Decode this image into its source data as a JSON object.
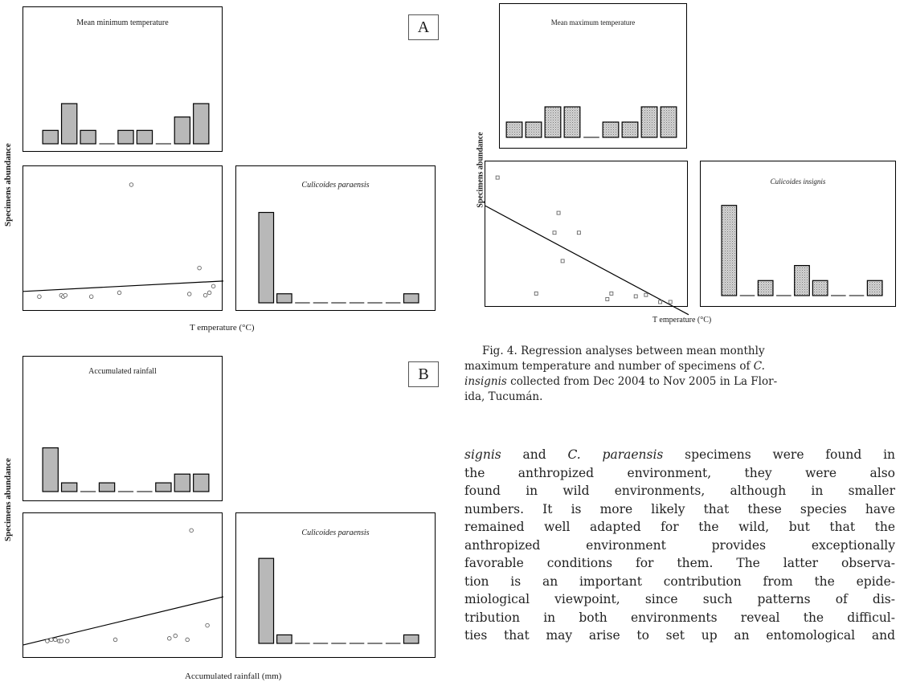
{
  "figure_a": {
    "letter": "A",
    "ylabel": "Specimens abundance",
    "xlabel": "T emperature (°C)",
    "top_title": "Mean minimum temperature",
    "right_title": "Culicoides paraensis"
  },
  "figure_b": {
    "letter": "B",
    "ylabel": "Specimens abundance",
    "xlabel": "Accumulated rainfall (mm)",
    "top_title": "Accumulated rainfall",
    "right_title": "Culicoides paraensis"
  },
  "figure_4": {
    "ylabel": "Specimens abundance",
    "xlabel": "T emperature (°C)",
    "top_title": "Mean maximum temperature",
    "right_title": "Culicoides insignis"
  },
  "caption": {
    "line1": "Fig. 4. Regression analyses between mean monthly",
    "line2a": "maximum temperature and number of specimens of ",
    "line2b": "C.",
    "line3a": "insignis",
    "line3b": " collected from Dec 2004 to Nov 2005 in La Flor-",
    "line4": "ida, Tucumán."
  },
  "body": {
    "l1a": "signis",
    "l1b": " and ",
    "l1c": "C. paraensis",
    "l1d": " specimens were found in",
    "l2": "the anthropized environment, they were also",
    "l3": "found in wild environments, although in smaller",
    "l4": "numbers. It is more likely that these species have",
    "l5": "remained well adapted for the wild, but that the",
    "l6": "anthropized environment provides exceptionally",
    "l7": "favorable conditions for them. The latter observa-",
    "l8": "tion is an important contribution from the epide-",
    "l9": "miological viewpoint, since such patterns of dis-",
    "l10": "tribution in both environments reveal the difficul-",
    "l11": "ties that may arise to set up an entomological and"
  },
  "colors": {
    "bar_gray": "#b8b8b8",
    "bar_stipple": "#d4d4d4",
    "line": "#000000",
    "point": "#666666"
  },
  "chart_data": [
    {
      "id": "A-top",
      "type": "bar",
      "title": "Mean minimum temperature",
      "values": [
        1,
        3,
        1,
        0,
        1,
        1,
        0,
        2,
        3
      ],
      "ylim": [
        0,
        6
      ]
    },
    {
      "id": "A-scatter",
      "type": "scatter",
      "ylabel": "Specimens abundance",
      "xlabel": "T emperature (°C)",
      "points": [
        [
          0.08,
          0.06
        ],
        [
          0.19,
          0.07
        ],
        [
          0.2,
          0.06
        ],
        [
          0.21,
          0.07
        ],
        [
          0.34,
          0.06
        ],
        [
          0.48,
          0.09
        ],
        [
          0.54,
          0.92
        ],
        [
          0.83,
          0.08
        ],
        [
          0.88,
          0.28
        ],
        [
          0.91,
          0.07
        ],
        [
          0.93,
          0.09
        ],
        [
          0.95,
          0.14
        ]
      ],
      "trend": [
        [
          0.0,
          0.1
        ],
        [
          1.0,
          0.18
        ]
      ]
    },
    {
      "id": "A-right",
      "type": "bar",
      "title": "Culicoides paraensis",
      "values": [
        10,
        1,
        0,
        0,
        0,
        0,
        0,
        0,
        1
      ],
      "ylim": [
        0,
        12
      ]
    },
    {
      "id": "B-top",
      "type": "bar",
      "title": "Accumulated rainfall",
      "values": [
        5,
        1,
        0,
        1,
        0,
        0,
        1,
        2,
        2
      ],
      "ylim": [
        0,
        9
      ]
    },
    {
      "id": "B-scatter",
      "type": "scatter",
      "ylabel": "Specimens abundance",
      "xlabel": "Accumulated rainfall (mm)",
      "points": [
        [
          0.12,
          0.08
        ],
        [
          0.14,
          0.09
        ],
        [
          0.16,
          0.09
        ],
        [
          0.18,
          0.08
        ],
        [
          0.19,
          0.08
        ],
        [
          0.22,
          0.08
        ],
        [
          0.46,
          0.09
        ],
        [
          0.73,
          0.1
        ],
        [
          0.76,
          0.12
        ],
        [
          0.82,
          0.09
        ],
        [
          0.84,
          0.93
        ],
        [
          0.92,
          0.2
        ]
      ],
      "trend": [
        [
          0.0,
          0.05
        ],
        [
          1.0,
          0.42
        ]
      ]
    },
    {
      "id": "B-right",
      "type": "bar",
      "title": "Culicoides paraensis",
      "values": [
        10,
        1,
        0,
        0,
        0,
        0,
        0,
        0,
        1
      ],
      "ylim": [
        0,
        12
      ]
    },
    {
      "id": "4-top",
      "type": "bar",
      "title": "Mean maximum temperature",
      "values": [
        1,
        1,
        2,
        2,
        0,
        1,
        1,
        2,
        2
      ],
      "ylim": [
        0,
        4
      ]
    },
    {
      "id": "4-scatter",
      "type": "scatter",
      "ylabel": "Specimens abundance",
      "xlabel": "T emperature (°C)",
      "points": [
        [
          0.06,
          0.92
        ],
        [
          0.25,
          0.1
        ],
        [
          0.34,
          0.53
        ],
        [
          0.36,
          0.67
        ],
        [
          0.38,
          0.33
        ],
        [
          0.46,
          0.53
        ],
        [
          0.6,
          0.06
        ],
        [
          0.62,
          0.1
        ],
        [
          0.74,
          0.08
        ],
        [
          0.79,
          0.09
        ],
        [
          0.86,
          0.04
        ],
        [
          0.91,
          0.04
        ]
      ],
      "trend": [
        [
          0.0,
          0.72
        ],
        [
          1.0,
          -0.05
        ]
      ]
    },
    {
      "id": "4-right",
      "type": "bar",
      "title": "Culicoides insignis",
      "values": [
        12,
        0,
        2,
        0,
        4,
        2,
        0,
        0,
        2
      ],
      "ylim": [
        0,
        14
      ]
    }
  ]
}
